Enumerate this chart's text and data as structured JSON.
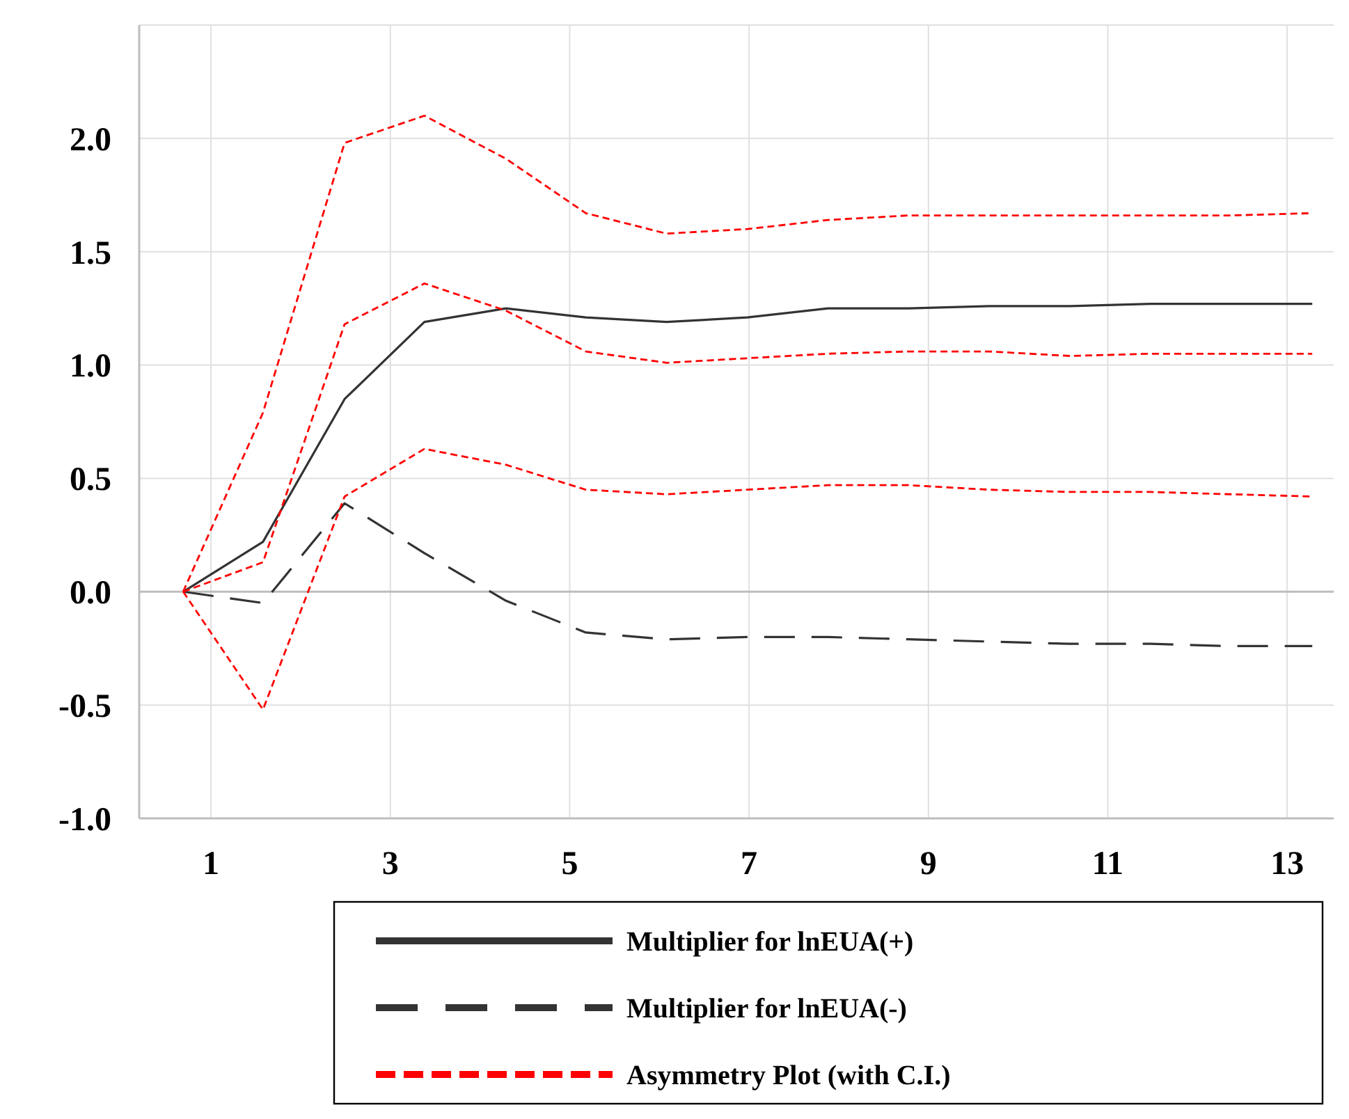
{
  "chart_data": {
    "type": "line",
    "x": [
      0.69,
      1.58,
      2.49,
      3.38,
      4.29,
      5.18,
      6.08,
      6.98,
      7.88,
      8.78,
      9.68,
      10.58,
      11.48,
      12.37,
      13.28
    ],
    "xlim": [
      0.2,
      13.55
    ],
    "xticks": [
      1,
      3,
      5,
      7,
      9,
      11,
      13
    ],
    "ylim": [
      -1.0,
      2.5
    ],
    "yticks": [
      {
        "value": -1,
        "label": "-1.0"
      },
      {
        "value": -0.5,
        "label": "-0.5"
      },
      {
        "value": 0,
        "label": "0.0"
      },
      {
        "value": 0.5,
        "label": "0.5"
      },
      {
        "value": 1,
        "label": "1.0"
      },
      {
        "value": 1.5,
        "label": "1.5"
      },
      {
        "value": 2,
        "label": "2.0"
      },
      {
        "value": 2.5,
        "label": null
      }
    ],
    "grid": true,
    "legend": "bottom",
    "series": [
      {
        "name": "Multiplier for lnEUA(+)",
        "color": "#333333",
        "line_style": "solid",
        "values": [
          0,
          0.22,
          0.85,
          1.19,
          1.25,
          1.21,
          1.19,
          1.21,
          1.25,
          1.25,
          1.26,
          1.26,
          1.27,
          1.27,
          1.27
        ]
      },
      {
        "name": "Multiplier for lnEUA(-)",
        "color": "#333333",
        "line_style": "dashed",
        "values": [
          0,
          -0.05,
          0.39,
          0.17,
          -0.04,
          -0.18,
          -0.21,
          -0.2,
          -0.2,
          -0.21,
          -0.22,
          -0.23,
          -0.23,
          -0.24,
          -0.24
        ]
      },
      {
        "name": "Asymmetry Plot (with C.I.)",
        "color": "#ff0000",
        "line_style": "dotted",
        "values": [
          0,
          0.13,
          1.18,
          1.36,
          1.24,
          1.06,
          1.01,
          1.03,
          1.05,
          1.06,
          1.06,
          1.04,
          1.05,
          1.05,
          1.05
        ]
      },
      {
        "color": "#ff0000",
        "line_style": "dotted",
        "values": [
          0,
          0.79,
          1.98,
          2.1,
          1.91,
          1.67,
          1.58,
          1.6,
          1.64,
          1.66,
          1.66,
          1.66,
          1.66,
          1.66,
          1.67
        ]
      },
      {
        "color": "#ff0000",
        "line_style": "dotted",
        "values": [
          0,
          -0.52,
          0.42,
          0.63,
          0.56,
          0.45,
          0.43,
          0.45,
          0.47,
          0.47,
          0.45,
          0.44,
          0.44,
          0.43,
          0.42
        ]
      }
    ]
  }
}
